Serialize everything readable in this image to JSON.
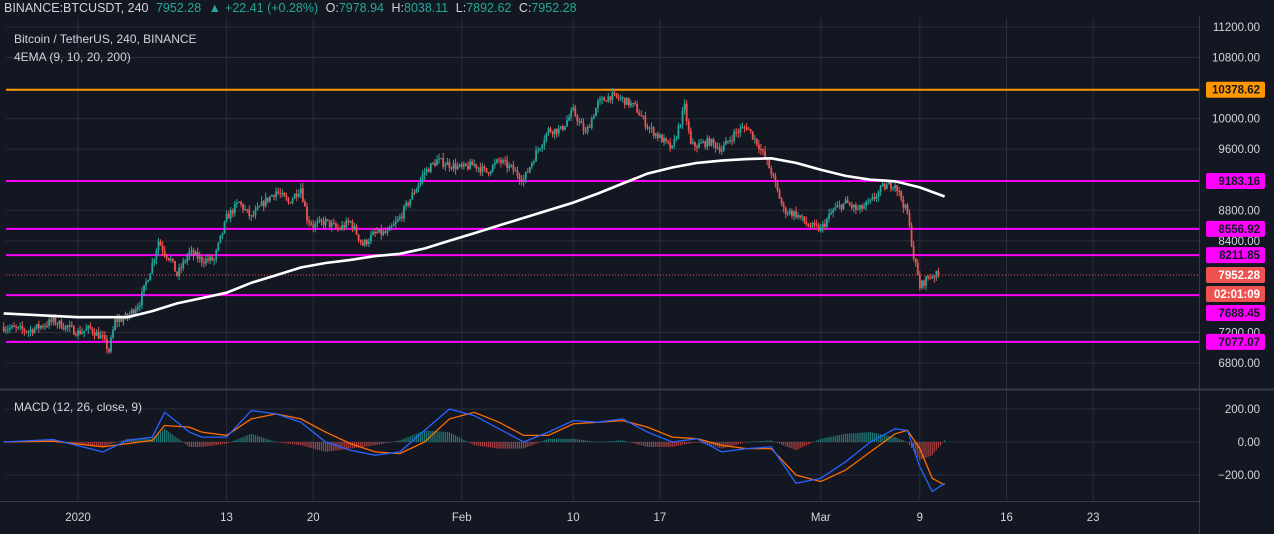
{
  "header": {
    "symbol": "BINANCE:BTCUSDT, 240",
    "last": "7952.28",
    "change": "+22.41 (+0.28%)",
    "o_label": "O:",
    "o_value": "7978.94",
    "h_label": "H:",
    "h_value": "8038.11",
    "l_label": "L:",
    "l_value": "7892.62",
    "c_label": "C:",
    "c_value": "7952.28"
  },
  "legend": {
    "title": "Bitcoin / TetherUS, 240, BINANCE",
    "indicator": "4EMA (9, 10, 20, 200)",
    "macd": "MACD (12, 26, close, 9)"
  },
  "colors": {
    "background": "#131722",
    "up": "#26a69a",
    "down": "#ef5350",
    "resistance": "#ff00ff",
    "top_line": "#ff9800",
    "ema": "#ffffff",
    "macd_line": "#2962ff",
    "signal_line": "#ff6d00",
    "grid": "#2a2e39"
  },
  "chart_data": [
    {
      "type": "candlestick",
      "title": "Bitcoin / TetherUS, 240, BINANCE",
      "y_ticks": [
        6800,
        7200,
        8400,
        8800,
        9600,
        10000,
        10800,
        11200
      ],
      "y_tick_labels": [
        "6800.00",
        "7200.00",
        "8400.00",
        "8800.00",
        "9600.00",
        "10000.00",
        "10800.00",
        "11200.00"
      ],
      "ylim": [
        6500,
        11300
      ],
      "x_ticks": [
        {
          "day": 0,
          "label": "2020"
        },
        {
          "day": 12,
          "label": "13"
        },
        {
          "day": 19,
          "label": "20"
        },
        {
          "day": 31,
          "label": "Feb"
        },
        {
          "day": 40,
          "label": "10"
        },
        {
          "day": 47,
          "label": "17"
        },
        {
          "day": 60,
          "label": "Mar"
        },
        {
          "day": 68,
          "label": "9"
        },
        {
          "day": 75,
          "label": "16"
        },
        {
          "day": 82,
          "label": "23"
        }
      ],
      "xlim_days": [
        -6,
        90
      ],
      "close_path": [
        [
          -6,
          7270
        ],
        [
          -4,
          7220
        ],
        [
          -2,
          7350
        ],
        [
          0,
          7200
        ],
        [
          1,
          7250
        ],
        [
          2,
          7120
        ],
        [
          2.5,
          6960
        ],
        [
          3,
          7350
        ],
        [
          4,
          7400
        ],
        [
          5,
          7600
        ],
        [
          6,
          8100
        ],
        [
          6.5,
          8400
        ],
        [
          7,
          8250
        ],
        [
          7.5,
          8150
        ],
        [
          8,
          7950
        ],
        [
          9,
          8250
        ],
        [
          10,
          8150
        ],
        [
          11,
          8150
        ],
        [
          12,
          8700
        ],
        [
          13,
          8900
        ],
        [
          14,
          8700
        ],
        [
          15,
          8900
        ],
        [
          16,
          9050
        ],
        [
          17,
          8900
        ],
        [
          18,
          9100
        ],
        [
          18.5,
          8700
        ],
        [
          19,
          8600
        ],
        [
          20,
          8650
        ],
        [
          21,
          8550
        ],
        [
          22,
          8650
        ],
        [
          23,
          8350
        ],
        [
          24,
          8500
        ],
        [
          25,
          8500
        ],
        [
          26,
          8700
        ],
        [
          27,
          9000
        ],
        [
          28,
          9300
        ],
        [
          29,
          9450
        ],
        [
          30,
          9400
        ],
        [
          31,
          9350
        ],
        [
          32,
          9400
        ],
        [
          33,
          9300
        ],
        [
          34,
          9450
        ],
        [
          35,
          9350
        ],
        [
          36,
          9200
        ],
        [
          37,
          9550
        ],
        [
          38,
          9850
        ],
        [
          39,
          9850
        ],
        [
          40,
          10100
        ],
        [
          41,
          9800
        ],
        [
          42,
          10200
        ],
        [
          43,
          10300
        ],
        [
          44,
          10250
        ],
        [
          45,
          10150
        ],
        [
          46,
          9900
        ],
        [
          47,
          9750
        ],
        [
          48,
          9600
        ],
        [
          49,
          10150
        ],
        [
          49.5,
          9650
        ],
        [
          50,
          9650
        ],
        [
          51,
          9700
        ],
        [
          52,
          9600
        ],
        [
          53,
          9800
        ],
        [
          54,
          9900
        ],
        [
          55,
          9650
        ],
        [
          56,
          9300
        ],
        [
          57,
          8800
        ],
        [
          58,
          8750
        ],
        [
          59,
          8600
        ],
        [
          60,
          8550
        ],
        [
          61,
          8800
        ],
        [
          62,
          8900
        ],
        [
          63,
          8800
        ],
        [
          64,
          8900
        ],
        [
          65,
          9100
        ],
        [
          66,
          9150
        ],
        [
          67,
          8750
        ],
        [
          67.5,
          8200
        ],
        [
          68,
          7800
        ],
        [
          68.5,
          7900
        ],
        [
          69,
          7950
        ],
        [
          69.5,
          7952.28
        ]
      ],
      "ema_path": [
        [
          -6,
          7450
        ],
        [
          0,
          7400
        ],
        [
          4,
          7400
        ],
        [
          6,
          7480
        ],
        [
          8,
          7580
        ],
        [
          10,
          7650
        ],
        [
          12,
          7720
        ],
        [
          14,
          7850
        ],
        [
          16,
          7950
        ],
        [
          18,
          8050
        ],
        [
          20,
          8110
        ],
        [
          22,
          8150
        ],
        [
          24,
          8200
        ],
        [
          26,
          8230
        ],
        [
          28,
          8300
        ],
        [
          30,
          8400
        ],
        [
          32,
          8500
        ],
        [
          34,
          8600
        ],
        [
          36,
          8700
        ],
        [
          38,
          8800
        ],
        [
          40,
          8900
        ],
        [
          42,
          9020
        ],
        [
          44,
          9150
        ],
        [
          46,
          9280
        ],
        [
          48,
          9360
        ],
        [
          50,
          9420
        ],
        [
          52,
          9450
        ],
        [
          54,
          9470
        ],
        [
          56,
          9480
        ],
        [
          58,
          9420
        ],
        [
          60,
          9330
        ],
        [
          62,
          9250
        ],
        [
          64,
          9200
        ],
        [
          66,
          9180
        ],
        [
          68,
          9100
        ],
        [
          70,
          8980
        ]
      ],
      "levels": [
        {
          "value": 10378.62,
          "label": "10378.62",
          "color": "#ff9800"
        },
        {
          "value": 9183.16,
          "label": "9183.16",
          "color": "#ff00ff"
        },
        {
          "value": 8556.92,
          "label": "8556.92",
          "color": "#ff00ff"
        },
        {
          "value": 8211.85,
          "label": "8211.85",
          "color": "#ff00ff"
        },
        {
          "value": 7688.45,
          "label": "7688.45",
          "color": "#ff00ff"
        },
        {
          "value": 7077.07,
          "label": "7077.07",
          "color": "#ff00ff"
        }
      ],
      "last_price": {
        "value": 7952.28,
        "label": "7952.28",
        "countdown": "02:01:09"
      }
    },
    {
      "type": "macd",
      "title": "MACD (12, 26, close, 9)",
      "y_ticks": [
        200,
        0,
        -200
      ],
      "y_tick_labels": [
        "200.00",
        "0.00",
        "−200.00"
      ],
      "ylim": [
        -350,
        280
      ],
      "macd_path": [
        [
          -6,
          0
        ],
        [
          -2,
          15
        ],
        [
          2,
          -60
        ],
        [
          4,
          10
        ],
        [
          6,
          30
        ],
        [
          7,
          180
        ],
        [
          9,
          60
        ],
        [
          10,
          30
        ],
        [
          12,
          30
        ],
        [
          14,
          190
        ],
        [
          16,
          170
        ],
        [
          18,
          120
        ],
        [
          20,
          0
        ],
        [
          22,
          -50
        ],
        [
          24,
          -80
        ],
        [
          26,
          -60
        ],
        [
          28,
          70
        ],
        [
          30,
          200
        ],
        [
          32,
          160
        ],
        [
          34,
          80
        ],
        [
          36,
          0
        ],
        [
          38,
          60
        ],
        [
          40,
          130
        ],
        [
          42,
          120
        ],
        [
          44,
          140
        ],
        [
          46,
          60
        ],
        [
          48,
          0
        ],
        [
          50,
          20
        ],
        [
          52,
          -60
        ],
        [
          54,
          -40
        ],
        [
          56,
          -30
        ],
        [
          58,
          -250
        ],
        [
          60,
          -220
        ],
        [
          62,
          -120
        ],
        [
          64,
          0
        ],
        [
          66,
          80
        ],
        [
          67,
          70
        ],
        [
          68,
          -150
        ],
        [
          69,
          -300
        ],
        [
          70,
          -250
        ]
      ],
      "signal_path": [
        [
          -6,
          0
        ],
        [
          -2,
          5
        ],
        [
          2,
          -30
        ],
        [
          4,
          -10
        ],
        [
          6,
          10
        ],
        [
          7,
          100
        ],
        [
          9,
          90
        ],
        [
          10,
          60
        ],
        [
          12,
          40
        ],
        [
          14,
          140
        ],
        [
          16,
          170
        ],
        [
          18,
          140
        ],
        [
          20,
          60
        ],
        [
          22,
          -10
        ],
        [
          24,
          -60
        ],
        [
          26,
          -70
        ],
        [
          28,
          0
        ],
        [
          30,
          140
        ],
        [
          32,
          180
        ],
        [
          34,
          120
        ],
        [
          36,
          40
        ],
        [
          38,
          40
        ],
        [
          40,
          110
        ],
        [
          42,
          120
        ],
        [
          44,
          130
        ],
        [
          46,
          90
        ],
        [
          48,
          30
        ],
        [
          50,
          20
        ],
        [
          52,
          -20
        ],
        [
          54,
          -40
        ],
        [
          56,
          -40
        ],
        [
          58,
          -200
        ],
        [
          60,
          -240
        ],
        [
          62,
          -170
        ],
        [
          64,
          -60
        ],
        [
          66,
          50
        ],
        [
          67,
          70
        ],
        [
          68,
          -40
        ],
        [
          69,
          -220
        ],
        [
          70,
          -260
        ]
      ]
    }
  ]
}
